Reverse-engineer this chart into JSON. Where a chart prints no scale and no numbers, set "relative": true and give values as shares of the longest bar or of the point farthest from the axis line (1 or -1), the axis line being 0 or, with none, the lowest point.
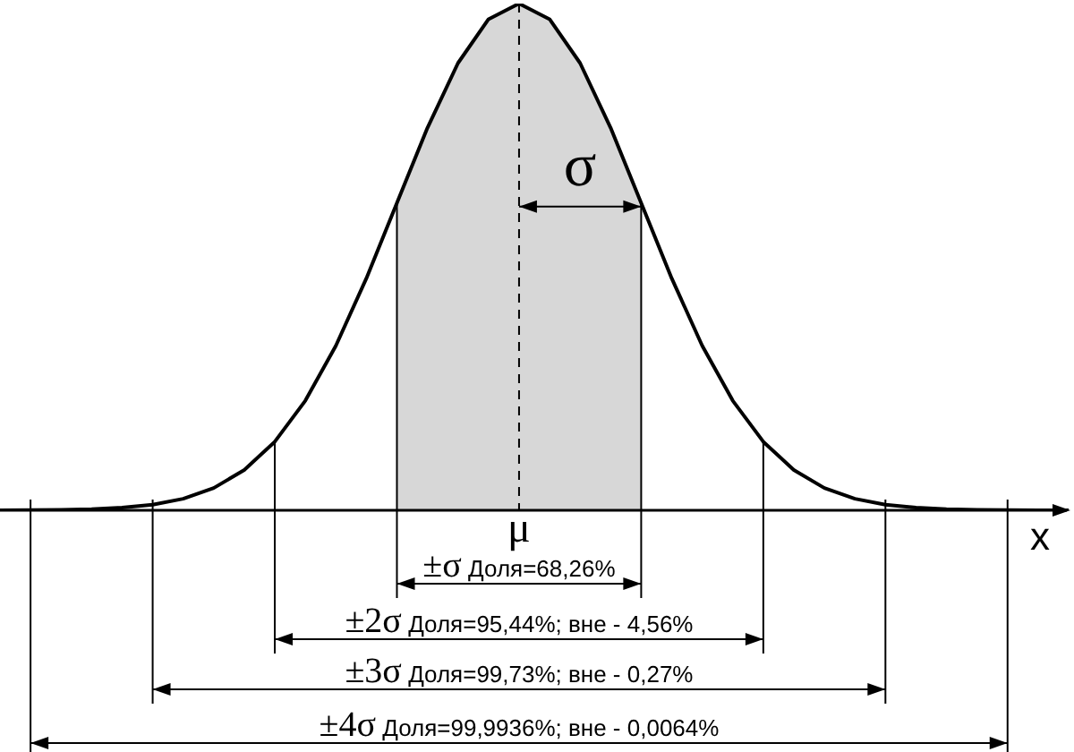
{
  "chart_data": {
    "type": "line",
    "relative": true,
    "xlabel": "x",
    "categories": [
      null,
      null,
      null,
      null,
      null,
      null,
      null,
      null,
      null,
      null,
      null,
      null,
      null,
      null,
      null,
      null,
      null,
      null,
      null,
      null,
      null,
      null,
      null,
      null,
      null,
      null,
      null,
      null,
      null,
      null,
      null,
      null,
      null,
      null,
      null,
      null
    ],
    "series": [
      {
        "color": "#000000",
        "values": [
          0.0001,
          0.0003,
          0.0009,
          0.0022,
          0.0051,
          0.0111,
          0.0228,
          0.0439,
          0.0796,
          0.1353,
          0.2163,
          0.3247,
          0.4578,
          0.6065,
          0.7548,
          0.8825,
          0.9692,
          1,
          0.9692,
          0.8825,
          0.7548,
          0.6065,
          0.4578,
          0.3247,
          0.2163,
          0.1353,
          0.0796,
          0.0439,
          0.0228,
          0.0111,
          0.0051,
          0.0022,
          0.0009,
          0.0003,
          0.0001,
          0
        ]
      },
      {
        "type": "area",
        "color": "#888888",
        "values": [
          null,
          null,
          null,
          null,
          null,
          null,
          null,
          null,
          null,
          null,
          null,
          null,
          null,
          0.6065,
          0.7548,
          0.8825,
          0.9692,
          1,
          0.9692,
          0.8825,
          0.7548,
          0.6065,
          null,
          null,
          null,
          null,
          null,
          null,
          null,
          null,
          null,
          null,
          null,
          null,
          null,
          null
        ]
      }
    ],
    "annotations": [
      "μ",
      "σ",
      "±σ Доля=68,26%",
      "±2σ Доля=95,44%; вне - 4,56%",
      "±3σ Доля=99,73%; вне - 0,27%",
      "±4σ Доля=99,9936%; вне - 0,0064%"
    ],
    "legend": false,
    "marker": "none",
    "line_style": "solid"
  }
}
